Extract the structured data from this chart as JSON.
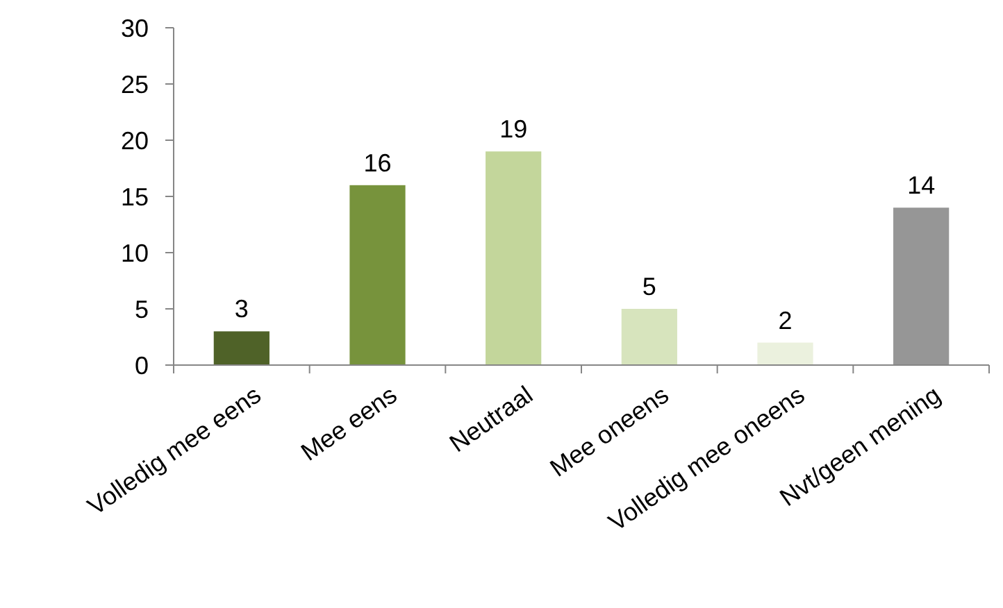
{
  "chart_data": {
    "type": "bar",
    "categories": [
      "Volledig mee eens",
      "Mee eens",
      "Neutraal",
      "Mee oneens",
      "Volledig mee oneens",
      "Nvt/geen mening"
    ],
    "values": [
      3,
      16,
      19,
      5,
      2,
      14
    ],
    "colors": [
      "#4f6228",
      "#77933c",
      "#c3d69b",
      "#d7e4bd",
      "#ebf1de",
      "#969696"
    ],
    "ylim": [
      0,
      30
    ],
    "yticks": [
      0,
      5,
      10,
      15,
      20,
      25,
      30
    ],
    "grid": false,
    "data_labels": true
  }
}
